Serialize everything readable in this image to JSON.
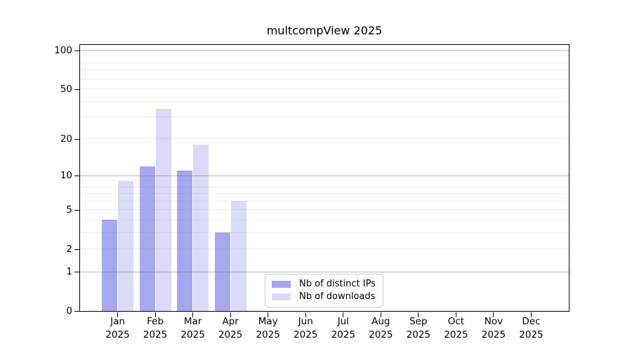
{
  "chart_data": {
    "type": "bar",
    "title": "multcompView 2025",
    "xlabel": "",
    "ylabel": "",
    "yscale": "log1p",
    "ylim": [
      0,
      110
    ],
    "grid": "on",
    "legend_position": "lower center",
    "categories": [
      "Jan",
      "Feb",
      "Mar",
      "Apr",
      "May",
      "Jun",
      "Jul",
      "Aug",
      "Sep",
      "Oct",
      "Nov",
      "Dec"
    ],
    "x_ticks": [
      {
        "label": "Jan",
        "year": "2025"
      },
      {
        "label": "Feb",
        "year": "2025"
      },
      {
        "label": "Mar",
        "year": "2025"
      },
      {
        "label": "Apr",
        "year": "2025"
      },
      {
        "label": "May",
        "year": "2025"
      },
      {
        "label": "Jun",
        "year": "2025"
      },
      {
        "label": "Jul",
        "year": "2025"
      },
      {
        "label": "Aug",
        "year": "2025"
      },
      {
        "label": "Sep",
        "year": "2025"
      },
      {
        "label": "Oct",
        "year": "2025"
      },
      {
        "label": "Nov",
        "year": "2025"
      },
      {
        "label": "Dec",
        "year": "2025"
      }
    ],
    "y_ticks": [
      {
        "value": 100,
        "label": "100"
      },
      {
        "value": 50,
        "label": "50"
      },
      {
        "value": 20,
        "label": "20"
      },
      {
        "value": 10,
        "label": "10"
      },
      {
        "value": 5,
        "label": "5"
      },
      {
        "value": 2,
        "label": "2"
      },
      {
        "value": 1,
        "label": "1"
      },
      {
        "value": 0,
        "label": "0"
      }
    ],
    "gridlines": {
      "decade": [
        1,
        10,
        100
      ],
      "minor": [
        2,
        3,
        4,
        5,
        6,
        7,
        8,
        9,
        20,
        30,
        40,
        50,
        60,
        70,
        80,
        90
      ]
    },
    "series": [
      {
        "name": "Nb of distinct IPs",
        "color": "#a7a7ee",
        "values": [
          4,
          12,
          11,
          3,
          0,
          0,
          0,
          0,
          0,
          0,
          0,
          0
        ]
      },
      {
        "name": "Nb of downloads",
        "color": "#dbdbf8",
        "values": [
          9,
          35,
          18,
          6,
          0,
          0,
          0,
          0,
          0,
          0,
          0,
          0
        ]
      }
    ],
    "colors": {
      "frame": "#000000",
      "background": "#ffffff",
      "grid_decade": "#c2c2c2",
      "grid_minor": "#ededed",
      "legend_border": "#cccccc",
      "text": "#000000"
    }
  }
}
